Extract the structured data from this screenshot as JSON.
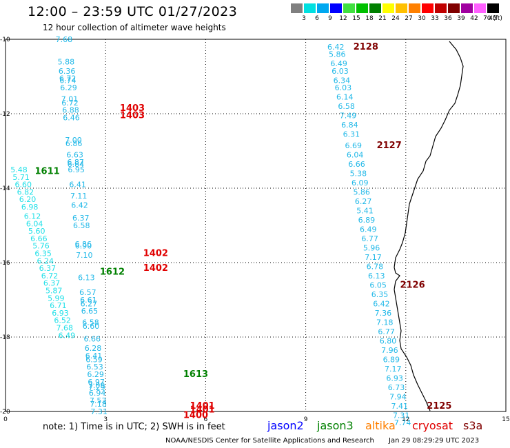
{
  "header": {
    "title": "12:00 – 23:59 UTC 01/27/2023",
    "subtitle": "12 hour collection of altimeter wave heights"
  },
  "color_scale": {
    "labels": [
      "3",
      "6",
      "9",
      "12",
      "15",
      "18",
      "21",
      "24",
      "27",
      "30",
      "33",
      "36",
      "39",
      "42",
      "45",
      "70 (ft)"
    ],
    "colors": [
      "#808080",
      "#00e0e0",
      "#00a8f0",
      "#0000ff",
      "#40e040",
      "#00c000",
      "#008000",
      "#ffff00",
      "#ffc000",
      "#ff8000",
      "#ff0000",
      "#c00000",
      "#800000",
      "#a000a0",
      "#ff60ff",
      "#000000"
    ]
  },
  "axes": {
    "x_ticks": [
      "0",
      "3",
      "6",
      "9",
      "12",
      "15"
    ],
    "y_ticks": [
      "-10",
      "-12",
      "-14",
      "-16",
      "-18",
      "-20"
    ]
  },
  "tracks": [
    {
      "id": "1403",
      "color": "#e00000",
      "label_pos": [
        1,
        11.9
      ],
      "points": []
    },
    {
      "id": "1402",
      "color": "#e00000",
      "points": []
    },
    {
      "id": "1401",
      "color": "#e00000",
      "points": []
    },
    {
      "id": "1400",
      "color": "#e00000",
      "points": []
    }
  ],
  "labels": {
    "west_pass": {
      "text_color": "#20b8e8",
      "values": [
        [
          "7.68",
          -10.0
        ],
        [
          "5.88",
          -10.6
        ],
        [
          "6.36",
          -10.85
        ],
        [
          "6.72",
          -11.05
        ],
        [
          "6.74",
          -11.1
        ],
        [
          "6.29",
          -11.3
        ],
        [
          "7.01",
          -11.6
        ],
        [
          "6.72",
          -11.7
        ],
        [
          "6.88",
          -11.9
        ],
        [
          "6.46",
          -12.1
        ],
        [
          "7.00",
          -12.7
        ],
        [
          "6.86",
          -12.8
        ],
        [
          "6.63",
          -13.1
        ],
        [
          "6.87",
          -13.3
        ],
        [
          "6.84",
          -13.35
        ],
        [
          "6.95",
          -13.5
        ],
        [
          "6.41",
          -13.9
        ],
        [
          "7.11",
          -14.2
        ],
        [
          "6.42",
          -14.45
        ],
        [
          "6.37",
          -14.8
        ],
        [
          "6.58",
          -15.0
        ],
        [
          "6.86",
          -15.5
        ],
        [
          "6.90",
          -15.55
        ],
        [
          "7.10",
          -15.8
        ],
        [
          "6.13",
          -16.4
        ],
        [
          "6.57",
          -16.8
        ],
        [
          "6.61",
          -17.0
        ],
        [
          "6.27",
          -17.1
        ],
        [
          "6.65",
          -17.3
        ],
        [
          "6.58",
          -17.6
        ],
        [
          "6.60",
          -17.7
        ],
        [
          "6.66",
          -18.05
        ],
        [
          "6.28",
          -18.3
        ],
        [
          "6.41",
          -18.5
        ],
        [
          "6.59",
          -18.6
        ],
        [
          "6.53",
          -18.8
        ],
        [
          "6.29",
          -19.0
        ],
        [
          "6.97",
          -19.2
        ],
        [
          "7.09",
          -19.3
        ],
        [
          "7.29",
          -19.35
        ],
        [
          "6.94",
          -19.5
        ],
        [
          "7.53",
          -19.7
        ],
        [
          "7.18",
          -19.8
        ],
        [
          "7.31",
          -20.0
        ]
      ]
    },
    "west_pass2": {
      "text_color": "#20e0e8",
      "values": [
        [
          "5.48",
          -13.5
        ],
        [
          "5.71",
          -13.7
        ],
        [
          "6.60",
          -13.9
        ],
        [
          "6.82",
          -14.1
        ],
        [
          "6.20",
          -14.3
        ],
        [
          "6.98",
          -14.5
        ],
        [
          "6.12",
          -14.75
        ],
        [
          "6.04",
          -14.95
        ],
        [
          "5.60",
          -15.15
        ],
        [
          "6.66",
          -15.35
        ],
        [
          "5.76",
          -15.55
        ],
        [
          "6.35",
          -15.75
        ],
        [
          "6.24",
          -15.95
        ],
        [
          "6.37",
          -16.15
        ],
        [
          "6.72",
          -16.35
        ],
        [
          "6.37",
          -16.55
        ],
        [
          "5.87",
          -16.75
        ],
        [
          "5.99",
          -16.95
        ],
        [
          "6.71",
          -17.15
        ],
        [
          "6.93",
          -17.35
        ],
        [
          "6.52",
          -17.55
        ],
        [
          "7.68",
          -17.75
        ],
        [
          "6.49",
          -17.95
        ]
      ]
    },
    "east_pass": {
      "text_color": "#20b8e8",
      "values": [
        [
          "6.42",
          -10.2
        ],
        [
          "5.86",
          -10.4
        ],
        [
          "6.49",
          -10.65
        ],
        [
          "6.03",
          -10.85
        ],
        [
          "6.34",
          -11.1
        ],
        [
          "6.03",
          -11.3
        ],
        [
          "6.14",
          -11.55
        ],
        [
          "6.58",
          -11.8
        ],
        [
          "7.49",
          -12.05
        ],
        [
          "6.84",
          -12.3
        ],
        [
          "6.31",
          -12.55
        ],
        [
          "6.69",
          -12.85
        ],
        [
          "6.04",
          -13.1
        ],
        [
          "6.66",
          -13.35
        ],
        [
          "5.38",
          -13.6
        ],
        [
          "6.09",
          -13.85
        ],
        [
          "5.86",
          -14.1
        ],
        [
          "6.27",
          -14.35
        ],
        [
          "5.41",
          -14.6
        ],
        [
          "6.89",
          -14.85
        ],
        [
          "6.49",
          -15.1
        ],
        [
          "6.77",
          -15.35
        ],
        [
          "5.96",
          -15.6
        ],
        [
          "7.17",
          -15.85
        ],
        [
          "6.78",
          -16.1
        ],
        [
          "6.13",
          -16.35
        ],
        [
          "6.05",
          -16.6
        ],
        [
          "6.35",
          -16.85
        ],
        [
          "6.42",
          -17.1
        ],
        [
          "7.36",
          -17.35
        ],
        [
          "7.18",
          -17.6
        ],
        [
          "6.77",
          -17.85
        ],
        [
          "6.80",
          -18.1
        ],
        [
          "7.96",
          -18.35
        ],
        [
          "6.89",
          -18.6
        ],
        [
          "7.17",
          -18.85
        ],
        [
          "6.93",
          -19.1
        ],
        [
          "6.73",
          -19.35
        ],
        [
          "7.94",
          -19.6
        ],
        [
          "7.41",
          -19.85
        ],
        [
          "7.31",
          -20.1
        ],
        [
          "7.74",
          -20.3
        ]
      ]
    }
  },
  "pass_ids": [
    {
      "text": "1403",
      "color": "#e00000",
      "x": 3.8,
      "y": -11.85
    },
    {
      "text": "1403",
      "color": "#e00000",
      "x": 3.8,
      "y": -12.05
    },
    {
      "text": "1611",
      "color": "#008000",
      "x": 1.25,
      "y": -13.55
    },
    {
      "text": "1402",
      "color": "#e00000",
      "x": 4.5,
      "y": -15.75
    },
    {
      "text": "1402",
      "color": "#e00000",
      "x": 4.5,
      "y": -16.15
    },
    {
      "text": "1612",
      "color": "#008000",
      "x": 3.2,
      "y": -16.25
    },
    {
      "text": "1613",
      "color": "#008000",
      "x": 5.7,
      "y": -19.0
    },
    {
      "text": "1401",
      "color": "#e00000",
      "x": 5.9,
      "y": -19.85
    },
    {
      "text": "1401",
      "color": "#e00000",
      "x": 5.9,
      "y": -19.95
    },
    {
      "text": "1400",
      "color": "#e00000",
      "x": 5.7,
      "y": -20.1
    },
    {
      "text": "2128",
      "color": "#800000",
      "x": 10.8,
      "y": -10.2
    },
    {
      "text": "2127",
      "color": "#800000",
      "x": 11.5,
      "y": -12.85
    },
    {
      "text": "2126",
      "color": "#800000",
      "x": 12.2,
      "y": -16.6
    },
    {
      "text": "2125",
      "color": "#800000",
      "x": 13.0,
      "y": -19.85
    }
  ],
  "note": "note: 1) Time is in UTC; 2) SWH is in feet",
  "satellites": [
    {
      "name": "jason2",
      "color": "#0000ff"
    },
    {
      "name": "jason3",
      "color": "#008000"
    },
    {
      "name": "altika",
      "color": "#ff8000"
    },
    {
      "name": "cryosat",
      "color": "#e00000"
    },
    {
      "name": "s3a",
      "color": "#800000"
    }
  ],
  "footer": {
    "credit": "NOAA/NESDIS Center for Satellite Applications and Research",
    "timestamp": "Jan 29 08:29:29 UTC 2023"
  }
}
